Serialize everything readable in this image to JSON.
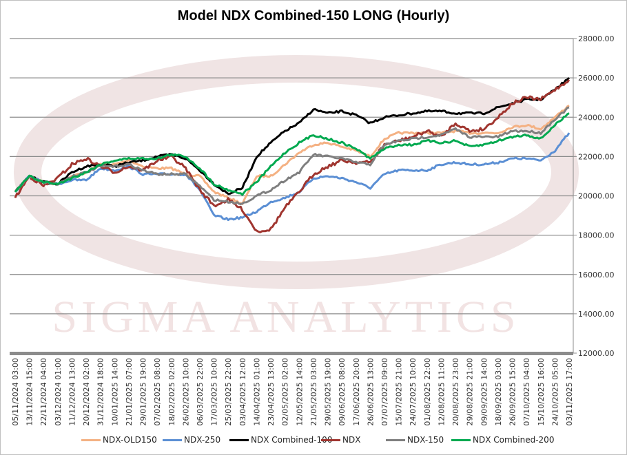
{
  "chart_data": {
    "type": "line",
    "title": "Model NDX Combined-150 LONG (Hourly)",
    "xlabel": "",
    "ylabel": "",
    "ylim": [
      12000,
      28000
    ],
    "yticks": [
      "12000.00",
      "14000.00",
      "16000.00",
      "18000.00",
      "20000.00",
      "22000.00",
      "24000.00",
      "26000.00",
      "28000.00"
    ],
    "ytick_values": [
      12000,
      14000,
      16000,
      18000,
      20000,
      22000,
      24000,
      26000,
      28000
    ],
    "grid": true,
    "legend_position": "bottom",
    "watermark": "SIGMA ANALYTICS",
    "categories": [
      "05/11/2024 03:00",
      "13/11/2024 15:00",
      "22/11/2024 04:00",
      "03/12/2024 01:00",
      "11/12/2024 13:00",
      "20/12/2024 02:00",
      "31/12/2024 18:00",
      "10/01/2025 14:00",
      "21/01/2025 07:00",
      "29/01/2025 19:00",
      "07/02/2025 08:00",
      "18/02/2025 02:00",
      "26/02/2025 10:00",
      "06/03/2025 22:00",
      "17/03/2025 10:00",
      "25/03/2025 22:00",
      "03/04/2025 12:00",
      "14/04/2025 01:00",
      "23/04/2025 13:00",
      "02/05/2025 02:00",
      "12/05/2025 14:00",
      "21/05/2025 03:00",
      "29/05/2025 19:00",
      "09/06/2025 08:00",
      "17/06/2025 20:00",
      "26/06/2025 13:00",
      "07/07/2025 09:00",
      "15/07/2025 21:00",
      "24/07/2025 10:00",
      "01/08/2025 22:00",
      "12/08/2025 11:00",
      "20/08/2025 23:00",
      "29/08/2025 21:00",
      "09/09/2025 14:00",
      "18/09/2025 03:00",
      "26/09/2025 15:00",
      "07/10/2025 04:00",
      "15/10/2025 16:00",
      "24/10/2025 05:00",
      "03/11/2025 17:00"
    ],
    "series": [
      {
        "name": "NDX-OLD150",
        "color": "#f4b183",
        "values": [
          20200,
          21000,
          20700,
          20600,
          21000,
          21200,
          21600,
          21600,
          21800,
          21500,
          21400,
          21400,
          21100,
          21000,
          20200,
          19900,
          19600,
          21000,
          21000,
          21600,
          22200,
          22600,
          22700,
          22500,
          22300,
          22000,
          22900,
          23200,
          23200,
          23200,
          23200,
          23300,
          23200,
          23200,
          23200,
          23500,
          23600,
          23400,
          24000,
          24600
        ]
      },
      {
        "name": "NDX-250",
        "color": "#5b8fd4",
        "values": [
          20200,
          21000,
          20700,
          20600,
          20800,
          20800,
          21400,
          21300,
          21500,
          21100,
          21100,
          21100,
          21100,
          20300,
          19000,
          18800,
          18900,
          19200,
          19700,
          19900,
          20200,
          20900,
          21000,
          20900,
          20700,
          20400,
          21100,
          21300,
          21300,
          21300,
          21600,
          21700,
          21600,
          21600,
          21700,
          21900,
          21900,
          21800,
          22300,
          23200
        ]
      },
      {
        "name": "NDX Combined-100",
        "color": "#000000",
        "values": [
          20200,
          21000,
          20700,
          20600,
          21200,
          21500,
          21600,
          21500,
          21700,
          21800,
          22000,
          22100,
          21900,
          21300,
          20600,
          20100,
          20400,
          22000,
          22700,
          23300,
          23700,
          24400,
          24200,
          24300,
          24100,
          23700,
          24000,
          24100,
          24200,
          24300,
          24300,
          24200,
          24200,
          24200,
          24500,
          24700,
          24900,
          24900,
          25400,
          26000
        ]
      },
      {
        "name": "NDX",
        "color": "#a0352f",
        "values": [
          19900,
          21000,
          20500,
          20900,
          21600,
          21900,
          21500,
          21200,
          21500,
          21300,
          21800,
          22000,
          21400,
          20300,
          19500,
          19800,
          19300,
          18200,
          18300,
          19400,
          20200,
          21100,
          21500,
          21800,
          21700,
          21700,
          22600,
          22800,
          23000,
          23300,
          23000,
          23700,
          23300,
          23400,
          24000,
          24700,
          25000,
          24900,
          25400,
          25900
        ]
      },
      {
        "name": "NDX-150",
        "color": "#7f7f7f",
        "values": [
          20200,
          21000,
          20700,
          20600,
          21000,
          21200,
          21500,
          21500,
          21600,
          21300,
          21100,
          21100,
          21100,
          20500,
          19800,
          19700,
          19600,
          20000,
          20300,
          20800,
          21200,
          22100,
          22000,
          21900,
          21700,
          21600,
          22600,
          22800,
          22900,
          23000,
          23100,
          23400,
          23000,
          23000,
          23000,
          23300,
          23300,
          23200,
          23900,
          24500
        ]
      },
      {
        "name": "NDX Combined-200",
        "color": "#00a94f",
        "values": [
          20200,
          21000,
          20700,
          20600,
          20900,
          21200,
          21600,
          21800,
          21900,
          21900,
          21900,
          22100,
          22000,
          21400,
          20600,
          20300,
          20100,
          20700,
          21500,
          22200,
          22700,
          23100,
          22900,
          22700,
          22400,
          21900,
          22400,
          22600,
          22600,
          22800,
          22700,
          22800,
          22500,
          22600,
          22800,
          23000,
          23100,
          22900,
          23600,
          24200
        ]
      }
    ]
  }
}
